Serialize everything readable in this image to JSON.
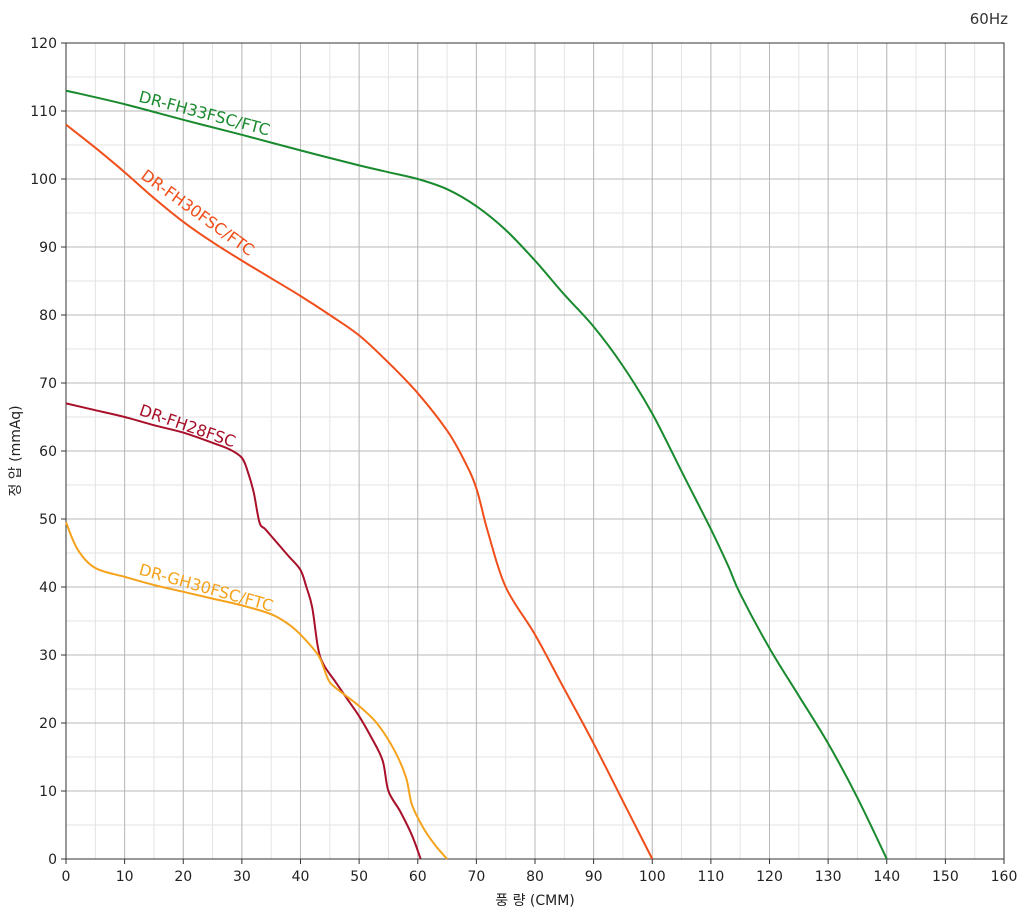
{
  "corner_label": "60Hz",
  "chart_data": {
    "type": "line",
    "xlabel": "풍 량 (CMM)",
    "ylabel": "정 압 (mmAq)",
    "xlim": [
      0,
      160
    ],
    "ylim": [
      0,
      120
    ],
    "x_ticks": [
      0,
      10,
      20,
      30,
      40,
      50,
      60,
      70,
      80,
      90,
      100,
      110,
      120,
      130,
      140,
      150,
      160
    ],
    "y_ticks": [
      0,
      10,
      20,
      30,
      40,
      50,
      60,
      70,
      80,
      90,
      100,
      110,
      120
    ],
    "x_minor_step": 5,
    "y_minor_step": 5,
    "grid": true,
    "legend": "inline labels on curves",
    "series": [
      {
        "name": "DR-FH33FSC/FTC",
        "color": "#1a8a2e",
        "points": [
          [
            0,
            113
          ],
          [
            10,
            111
          ],
          [
            20,
            108.7
          ],
          [
            30,
            106.5
          ],
          [
            40,
            104.2
          ],
          [
            50,
            102
          ],
          [
            55,
            101
          ],
          [
            60,
            100
          ],
          [
            65,
            98.5
          ],
          [
            70,
            96
          ],
          [
            75,
            92.5
          ],
          [
            80,
            88
          ],
          [
            85,
            83
          ],
          [
            90,
            78.3
          ],
          [
            95,
            72.5
          ],
          [
            100,
            65.5
          ],
          [
            105,
            57
          ],
          [
            110,
            48.5
          ],
          [
            113,
            43
          ],
          [
            115,
            39
          ],
          [
            120,
            31
          ],
          [
            125,
            24
          ],
          [
            130,
            17
          ],
          [
            135,
            9
          ],
          [
            140,
            0
          ]
        ]
      },
      {
        "name": "DR-FH30FSC/FTC",
        "color": "#f04e1a",
        "points": [
          [
            0,
            108
          ],
          [
            5,
            104.6
          ],
          [
            10,
            101
          ],
          [
            15,
            97.2
          ],
          [
            20,
            93.7
          ],
          [
            25,
            90.7
          ],
          [
            30,
            88
          ],
          [
            35,
            85.4
          ],
          [
            40,
            82.8
          ],
          [
            45,
            80
          ],
          [
            50,
            77
          ],
          [
            55,
            73
          ],
          [
            60,
            68.5
          ],
          [
            65,
            63
          ],
          [
            68,
            58.5
          ],
          [
            70,
            54.5
          ],
          [
            72,
            48
          ],
          [
            75,
            40
          ],
          [
            80,
            33
          ],
          [
            85,
            25
          ],
          [
            90,
            17
          ],
          [
            95,
            8.5
          ],
          [
            100,
            0
          ]
        ]
      },
      {
        "name": "DR-FH28FSC",
        "color": "#a8102a",
        "points": [
          [
            0,
            67
          ],
          [
            5,
            66
          ],
          [
            10,
            65
          ],
          [
            15,
            63.8
          ],
          [
            20,
            62.7
          ],
          [
            25,
            61.2
          ],
          [
            28,
            60.2
          ],
          [
            30,
            59
          ],
          [
            31,
            57
          ],
          [
            32,
            54
          ],
          [
            33,
            49.5
          ],
          [
            34,
            48.5
          ],
          [
            36,
            46.5
          ],
          [
            38,
            44.5
          ],
          [
            40,
            42.5
          ],
          [
            41,
            40
          ],
          [
            42,
            37
          ],
          [
            43,
            31
          ],
          [
            44,
            28.5
          ],
          [
            46,
            26
          ],
          [
            48,
            23.5
          ],
          [
            50,
            21
          ],
          [
            52,
            18
          ],
          [
            54,
            14.5
          ],
          [
            55,
            10
          ],
          [
            57,
            7
          ],
          [
            59,
            3.5
          ],
          [
            60.5,
            0
          ]
        ]
      },
      {
        "name": "DR-GH30FSC/FTC",
        "color": "#f5a21c",
        "points": [
          [
            0,
            49.5
          ],
          [
            2,
            45.5
          ],
          [
            5,
            42.8
          ],
          [
            10,
            41.5
          ],
          [
            15,
            40.3
          ],
          [
            20,
            39.3
          ],
          [
            25,
            38.3
          ],
          [
            30,
            37.3
          ],
          [
            35,
            36
          ],
          [
            38,
            34.5
          ],
          [
            40,
            33
          ],
          [
            43,
            30
          ],
          [
            44,
            28
          ],
          [
            45,
            26
          ],
          [
            47,
            24.5
          ],
          [
            50,
            22.5
          ],
          [
            53,
            20
          ],
          [
            56,
            16
          ],
          [
            58,
            12
          ],
          [
            59,
            8
          ],
          [
            61,
            4.5
          ],
          [
            63,
            2
          ],
          [
            65,
            0
          ]
        ]
      }
    ]
  }
}
